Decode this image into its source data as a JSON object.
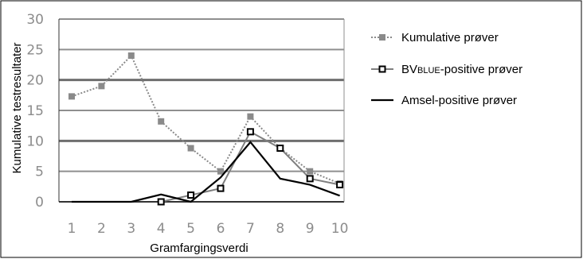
{
  "chart_data": {
    "type": "line",
    "xlabel": "Gramfargingsverdi",
    "ylabel": "Kumulative testresultater",
    "categories": [
      "1",
      "2",
      "3",
      "4",
      "5",
      "6",
      "7",
      "8",
      "9",
      "10"
    ],
    "ylim": [
      0,
      30
    ],
    "yticks": [
      0,
      5,
      10,
      15,
      20,
      25,
      30
    ],
    "grid": "horizontal",
    "legend_position": "right",
    "series": [
      {
        "name": "Kumulative prøver",
        "legend_main": "Kumulative prøver",
        "legend_small": "",
        "legend_tail": "",
        "color": "#8a8a8a",
        "style": "dotted-square-filled",
        "x": [
          1,
          2,
          3,
          4,
          5,
          6,
          7,
          8,
          9,
          10
        ],
        "values": [
          17.3,
          19,
          24,
          13.2,
          8.8,
          5,
          14,
          8.8,
          5,
          3
        ]
      },
      {
        "name": "BVBLUE-positive prøver",
        "legend_main": "BV",
        "legend_small": "BLUE",
        "legend_tail": "-positive prøver",
        "color": "#7f7f7f",
        "marker_color": "#000000",
        "style": "solid-square-open",
        "x": [
          4,
          5,
          6,
          7,
          8,
          9,
          10
        ],
        "values": [
          0,
          1.1,
          2.2,
          11.5,
          8.8,
          3.8,
          2.8
        ]
      },
      {
        "name": "Amsel-positive prøver",
        "legend_main": "Amsel-positive prøver",
        "legend_small": "",
        "legend_tail": "",
        "color": "#000000",
        "style": "solid",
        "x": [
          1,
          2,
          3,
          4,
          5,
          6,
          7,
          8,
          9,
          10
        ],
        "values": [
          0,
          0,
          0,
          1.2,
          0,
          4,
          9.8,
          3.8,
          2.8,
          1
        ]
      }
    ]
  }
}
